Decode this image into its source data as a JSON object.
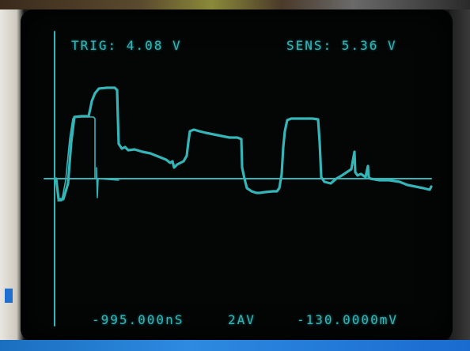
{
  "scope": {
    "trigger": "TRIG: 4.08 V",
    "sensitivity": "SENS: 5.36 V",
    "time_offset": "-995.000nS",
    "average": "2AV",
    "voltage_offset": "-130.0000mV"
  },
  "colors": {
    "trace": "#35b5b8",
    "screen": "#030605"
  }
}
